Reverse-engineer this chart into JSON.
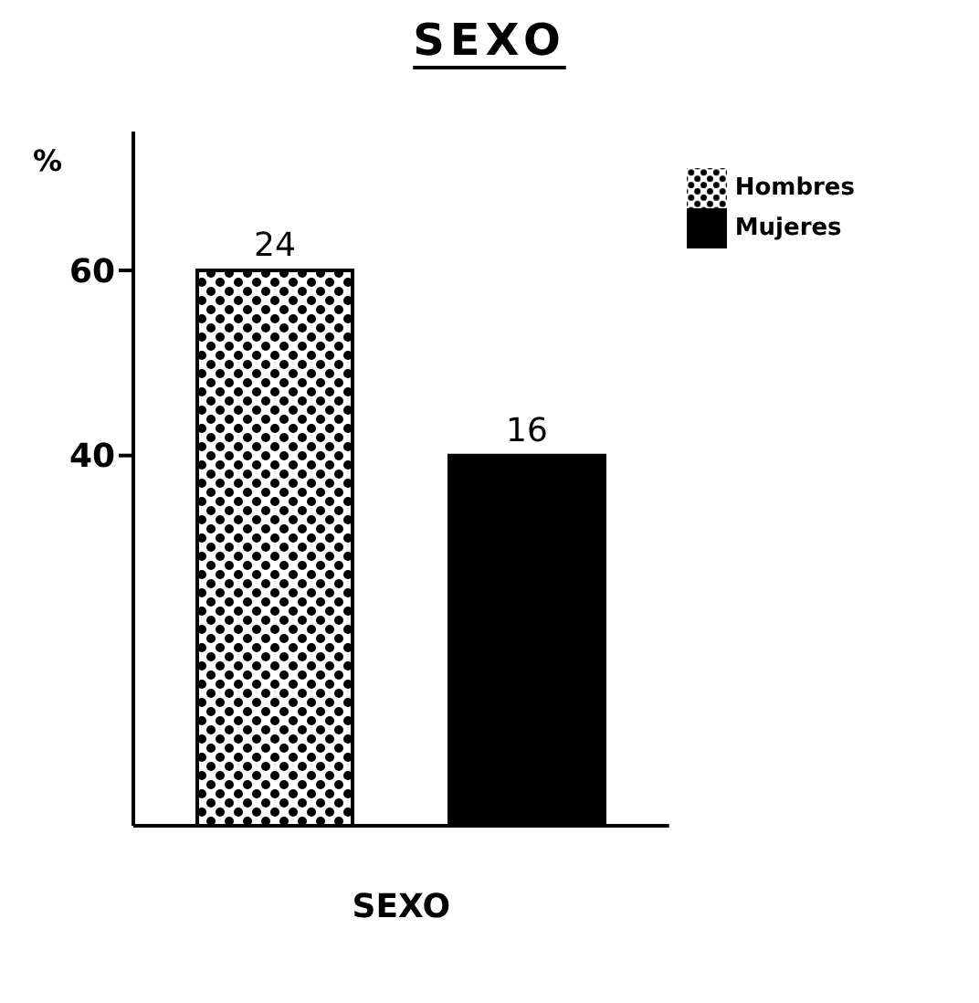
{
  "chart_data": {
    "type": "bar",
    "title": "SEXO",
    "xlabel": "SEXO",
    "ylabel": "%",
    "categories": [
      null
    ],
    "series": [
      {
        "name": "Hombres",
        "color": "#000000",
        "values": [
          60
        ]
      },
      {
        "name": "Mujeres",
        "color": "#000000",
        "values": [
          40
        ]
      }
    ],
    "annotations": [
      {
        "text": "24",
        "y": 60
      },
      {
        "text": "16",
        "y": 40
      }
    ],
    "ylim": [
      0,
      75
    ],
    "yticks": [
      40,
      60
    ],
    "grid": false,
    "legend": "top right"
  }
}
